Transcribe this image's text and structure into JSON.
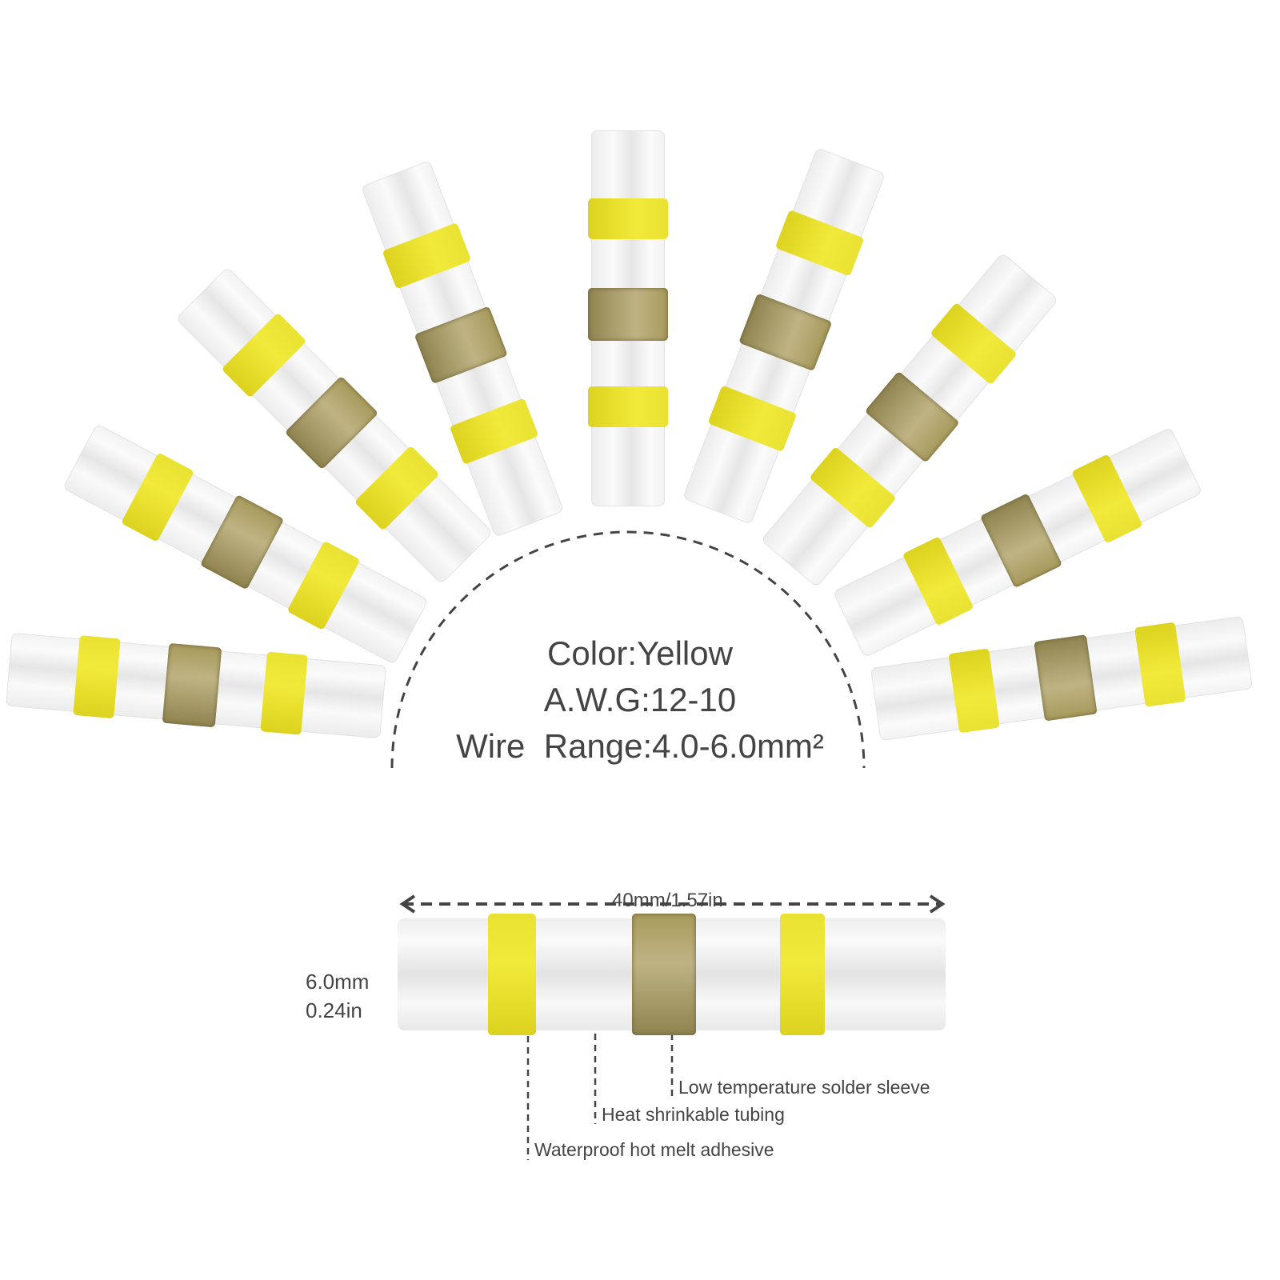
{
  "specs": {
    "color": "Color:Yellow",
    "awg": "A.W.G:12-10",
    "wire_range": "Wire  Range:4.0-6.0mm²"
  },
  "dimensions": {
    "length": "40mm/1.57in",
    "diameter_mm": "6.0mm",
    "diameter_in": "0.24in"
  },
  "callouts": [
    "Low temperature solder sleeve",
    "Heat shrinkable tubing",
    "Waterproof hot melt adhesive"
  ],
  "colors": {
    "band_yellow": "#ebe331",
    "solder_gold": "#a99c60",
    "text": "#444444"
  }
}
